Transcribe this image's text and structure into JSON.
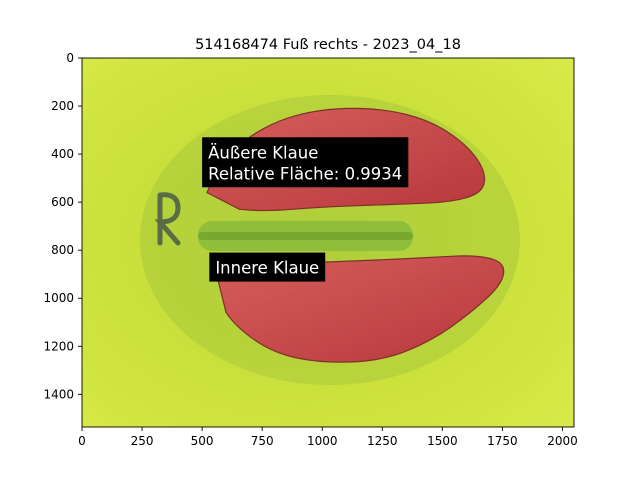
{
  "chart_data": {
    "type": "image",
    "title": "514168474 Fuß rechts - 2023_04_18",
    "xlim": [
      0,
      2048
    ],
    "ylim": [
      1536,
      0
    ],
    "xticks": [
      0,
      250,
      500,
      750,
      1000,
      1250,
      1500,
      1750,
      2000
    ],
    "yticks": [
      0,
      200,
      400,
      600,
      800,
      1000,
      1200,
      1400
    ],
    "xtick_labels": [
      "0",
      "250",
      "500",
      "750",
      "1000",
      "1250",
      "1500",
      "1750",
      "2000"
    ],
    "ytick_labels": [
      "0",
      "200",
      "400",
      "600",
      "800",
      "1000",
      "1200",
      "1400"
    ],
    "grid": false,
    "colors": {
      "background": "#cfe23a",
      "claw_fill": "#c9404a",
      "claw_dark": "#7a2a2a",
      "label_box": "#000000",
      "label_text": "#ffffff"
    },
    "annotations": [
      {
        "name": "outer-claw",
        "lines": [
          "Äußere Klaue",
          "Relative Fläche: 0.9934"
        ],
        "x": 500,
        "y": 330
      },
      {
        "name": "inner-claw",
        "lines": [
          "Innere Klaue"
        ],
        "x": 530,
        "y": 810
      }
    ],
    "regions": [
      {
        "name": "outer-claw-region",
        "outline": [
          [
            520,
            560
          ],
          [
            600,
            400
          ],
          [
            780,
            270
          ],
          [
            1000,
            210
          ],
          [
            1250,
            210
          ],
          [
            1450,
            260
          ],
          [
            1600,
            360
          ],
          [
            1680,
            470
          ],
          [
            1670,
            560
          ],
          [
            1540,
            600
          ],
          [
            1300,
            610
          ],
          [
            1000,
            620
          ],
          [
            750,
            640
          ],
          [
            560,
            620
          ]
        ]
      },
      {
        "name": "inner-claw-region",
        "outline": [
          [
            560,
            900
          ],
          [
            750,
            860
          ],
          [
            1000,
            850
          ],
          [
            1250,
            840
          ],
          [
            1450,
            830
          ],
          [
            1640,
            820
          ],
          [
            1760,
            850
          ],
          [
            1750,
            940
          ],
          [
            1620,
            1060
          ],
          [
            1450,
            1180
          ],
          [
            1250,
            1260
          ],
          [
            1000,
            1270
          ],
          [
            800,
            1230
          ],
          [
            640,
            1120
          ],
          [
            560,
            1000
          ]
        ]
      }
    ]
  }
}
